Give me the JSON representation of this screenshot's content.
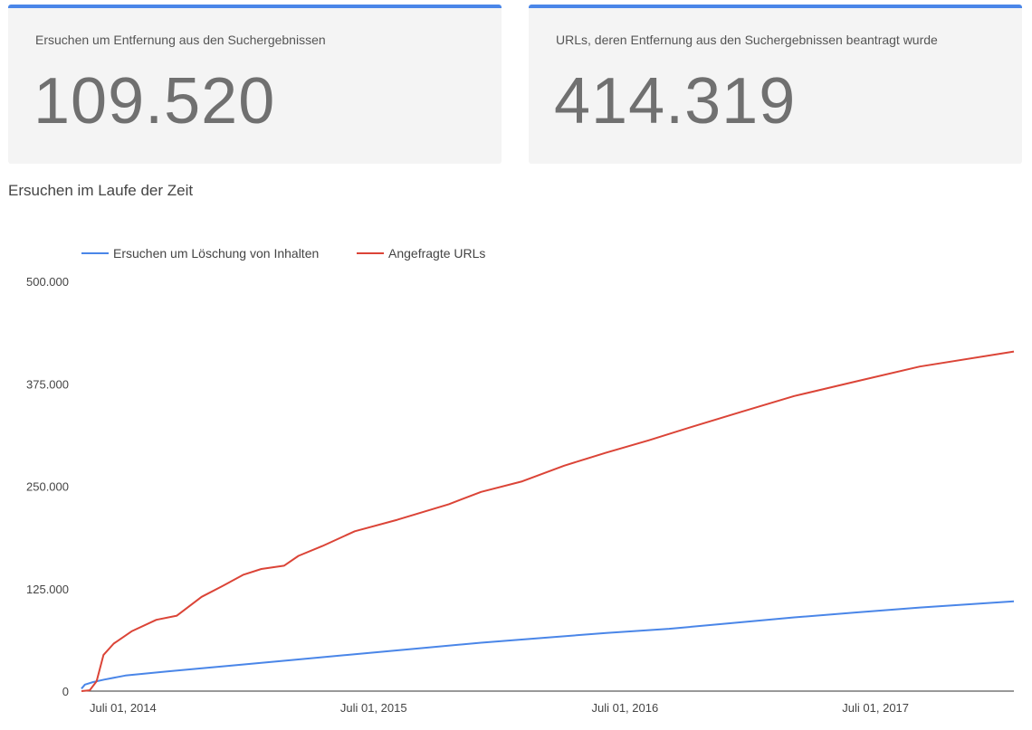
{
  "stats": {
    "requests_label": "Ersuchen um Entfernung aus den Suchergebnissen",
    "requests_value": "109.520",
    "urls_label": "URLs, deren Entfernung aus den Suchergebnissen beantragt wurde",
    "urls_value": "414.319"
  },
  "section_title": "Ersuchen im Laufe der Zeit",
  "colors": {
    "accent": "#4a86e8",
    "series_requests": "#4a86e8",
    "series_urls": "#db4437"
  },
  "chart_data": {
    "type": "line",
    "title": "",
    "xlabel": "",
    "ylabel": "",
    "ylim": [
      0,
      500000
    ],
    "yticks": [
      0,
      125000,
      250000,
      375000,
      500000
    ],
    "ytick_labels": [
      "0",
      "125.000",
      "250.000",
      "375.000",
      "500.000"
    ],
    "xlim": [
      "2014-05-29",
      "2018-02-15"
    ],
    "xticks": [
      "2014-07-01",
      "2015-07-01",
      "2016-07-01",
      "2017-07-01"
    ],
    "xtick_labels": [
      "Juli 01, 2014",
      "Juli 01, 2015",
      "Juli 01, 2016",
      "Juli 01, 2017"
    ],
    "legend_position": "top-left",
    "grid": false,
    "series": [
      {
        "name": "Ersuchen um Löschung von Inhalten",
        "color": "#4a86e8",
        "points": [
          [
            "2014-05-29",
            3000
          ],
          [
            "2014-06-03",
            8000
          ],
          [
            "2014-06-15",
            11000
          ],
          [
            "2014-07-01",
            14000
          ],
          [
            "2014-08-01",
            19000
          ],
          [
            "2014-10-01",
            24000
          ],
          [
            "2015-01-01",
            31000
          ],
          [
            "2015-04-01",
            38000
          ],
          [
            "2015-07-01",
            45000
          ],
          [
            "2015-10-01",
            52000
          ],
          [
            "2016-01-01",
            59000
          ],
          [
            "2016-04-01",
            65000
          ],
          [
            "2016-07-01",
            71000
          ],
          [
            "2016-10-01",
            76000
          ],
          [
            "2017-01-01",
            83000
          ],
          [
            "2017-04-01",
            90000
          ],
          [
            "2017-07-01",
            96000
          ],
          [
            "2017-10-01",
            102000
          ],
          [
            "2018-02-15",
            109520
          ]
        ]
      },
      {
        "name": "Angefragte URLs",
        "color": "#db4437",
        "points": [
          [
            "2014-05-29",
            0
          ],
          [
            "2014-06-10",
            1000
          ],
          [
            "2014-06-20",
            12000
          ],
          [
            "2014-06-30",
            44000
          ],
          [
            "2014-07-15",
            58000
          ],
          [
            "2014-08-10",
            73000
          ],
          [
            "2014-09-15",
            87000
          ],
          [
            "2014-10-15",
            92000
          ],
          [
            "2014-11-20",
            115000
          ],
          [
            "2014-12-20",
            128000
          ],
          [
            "2015-01-20",
            142000
          ],
          [
            "2015-02-15",
            149000
          ],
          [
            "2015-03-20",
            153000
          ],
          [
            "2015-04-10",
            165000
          ],
          [
            "2015-05-15",
            177000
          ],
          [
            "2015-07-01",
            195000
          ],
          [
            "2015-09-01",
            209000
          ],
          [
            "2015-11-15",
            228000
          ],
          [
            "2016-01-01",
            243000
          ],
          [
            "2016-03-01",
            256000
          ],
          [
            "2016-05-01",
            275000
          ],
          [
            "2016-07-01",
            291000
          ],
          [
            "2016-09-01",
            306000
          ],
          [
            "2016-11-01",
            322000
          ],
          [
            "2017-01-15",
            341000
          ],
          [
            "2017-04-01",
            360000
          ],
          [
            "2017-07-01",
            378000
          ],
          [
            "2017-10-01",
            396000
          ],
          [
            "2018-02-15",
            414319
          ]
        ]
      }
    ]
  }
}
